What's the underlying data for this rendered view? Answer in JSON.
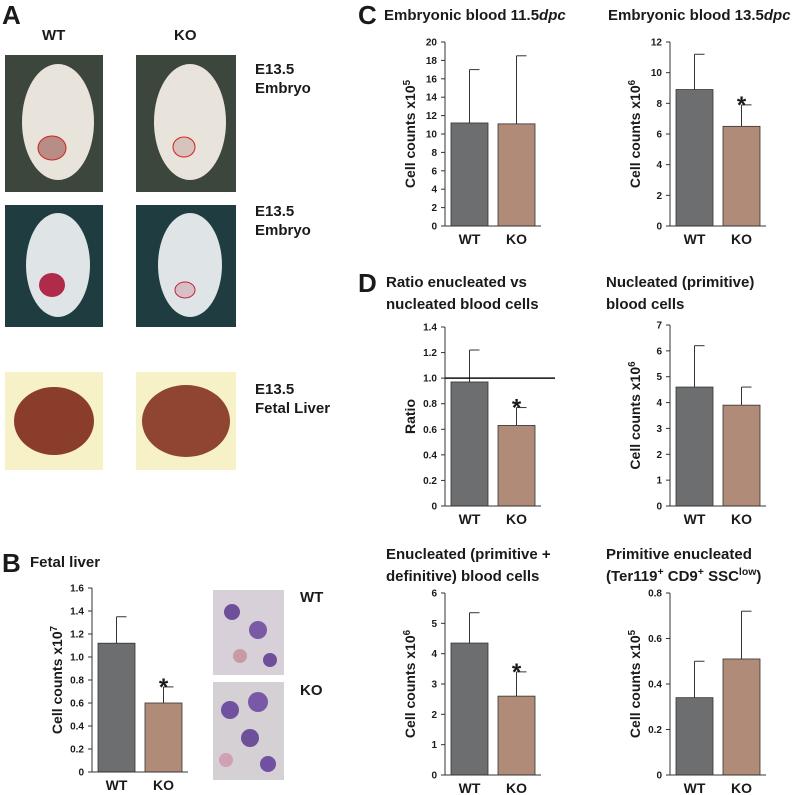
{
  "figure": {
    "panels": [
      "A",
      "B",
      "C",
      "D"
    ],
    "photo_columns": [
      "WT",
      "KO"
    ],
    "photo_rows": [
      [
        "E13.5",
        "Embryo"
      ],
      [
        "E13.5",
        "Embryo"
      ],
      [
        "E13.5",
        "Fetal Liver"
      ]
    ],
    "micrograph_labels": [
      "WT",
      "KO"
    ]
  },
  "chart_data": [
    {
      "type": "bar",
      "title_lines": [
        [
          {
            "text": "Fetal liver"
          }
        ]
      ],
      "ylabel": [
        {
          "text": "Cell counts x10"
        },
        {
          "text": "7",
          "sup": true
        }
      ],
      "categories": [
        "WT",
        "KO"
      ],
      "values": [
        1.12,
        0.6
      ],
      "errors": [
        0.23,
        0.14
      ],
      "colors": [
        "#6d6e70",
        "#b08b78"
      ],
      "ylim": [
        0,
        1.6
      ],
      "yticks": [
        0,
        0.2,
        0.4,
        0.6,
        0.8,
        {
          "value": 1,
          "label": "1.0"
        },
        1.2,
        1.4,
        1.6
      ],
      "annotation": "*"
    },
    {
      "type": "bar",
      "title_lines": [
        [
          {
            "text": "Embryonic blood 11.5"
          },
          {
            "text": "dpc",
            "italic": true
          }
        ]
      ],
      "ylabel": [
        {
          "text": "Cell counts x10"
        },
        {
          "text": "5",
          "sup": true
        }
      ],
      "categories": [
        "WT",
        "KO"
      ],
      "values": [
        11.2,
        11.1
      ],
      "errors": [
        5.8,
        7.4
      ],
      "colors": [
        "#6d6e70",
        "#b08b78"
      ],
      "ylim": [
        0,
        20
      ],
      "yticks": [
        0,
        2,
        4,
        6,
        8,
        10,
        12,
        14,
        16,
        18,
        20
      ]
    },
    {
      "type": "bar",
      "title_lines": [
        [
          {
            "text": "Embryonic blood 13.5"
          },
          {
            "text": "dpc",
            "italic": true
          }
        ]
      ],
      "ylabel": [
        {
          "text": "Cell counts x10"
        },
        {
          "text": "6",
          "sup": true
        }
      ],
      "categories": [
        "WT",
        "KO"
      ],
      "values": [
        8.9,
        6.5
      ],
      "errors": [
        2.3,
        1.4
      ],
      "colors": [
        "#6d6e70",
        "#b08b78"
      ],
      "ylim": [
        0,
        12
      ],
      "yticks": [
        0,
        2,
        4,
        6,
        8,
        10,
        12
      ],
      "annotation": "*"
    },
    {
      "type": "bar",
      "title_lines": [
        [
          {
            "text": "Ratio enucleated vs"
          }
        ],
        [
          {
            "text": "nucleated blood cells"
          }
        ]
      ],
      "ylabel": [
        {
          "text": "Ratio"
        }
      ],
      "categories": [
        "WT",
        "KO"
      ],
      "values": [
        0.97,
        0.63
      ],
      "errors": [
        0.25,
        0.14
      ],
      "colors": [
        "#6d6e70",
        "#b08b78"
      ],
      "ylim": [
        0,
        1.4
      ],
      "yticks": [
        0,
        0.2,
        0.4,
        0.6,
        0.8,
        {
          "value": 1,
          "label": "1.0"
        },
        1.2,
        1.4
      ],
      "reference_line": 1,
      "annotation": "*"
    },
    {
      "type": "bar",
      "title_lines": [
        [
          {
            "text": "Nucleated (primitive)"
          }
        ],
        [
          {
            "text": "blood cells"
          }
        ]
      ],
      "ylabel": [
        {
          "text": "Cell counts x10"
        },
        {
          "text": "6",
          "sup": true
        }
      ],
      "categories": [
        "WT",
        "KO"
      ],
      "values": [
        4.6,
        3.9
      ],
      "errors": [
        1.6,
        0.7
      ],
      "colors": [
        "#6d6e70",
        "#b08b78"
      ],
      "ylim": [
        0,
        7
      ],
      "yticks": [
        0,
        1,
        2,
        3,
        4,
        5,
        6,
        7
      ]
    },
    {
      "type": "bar",
      "title_lines": [
        [
          {
            "text": "Enucleated (primitive +"
          }
        ],
        [
          {
            "text": "definitive) blood cells"
          }
        ]
      ],
      "ylabel": [
        {
          "text": "Cell counts x10"
        },
        {
          "text": "6",
          "sup": true
        }
      ],
      "categories": [
        "WT",
        "KO"
      ],
      "values": [
        4.35,
        2.6
      ],
      "errors": [
        1.0,
        0.8
      ],
      "colors": [
        "#6d6e70",
        "#b08b78"
      ],
      "ylim": [
        0,
        6
      ],
      "yticks": [
        0,
        1,
        2,
        3,
        4,
        5,
        6
      ],
      "annotation": "*"
    },
    {
      "type": "bar",
      "title_lines": [
        [
          {
            "text": "Primitive enucleated"
          }
        ],
        [
          {
            "text": "(Ter119"
          },
          {
            "text": "+",
            "sup": true
          },
          {
            "text": " CD9"
          },
          {
            "text": "+",
            "sup": true
          },
          {
            "text": " SSC"
          },
          {
            "text": "low",
            "sup": true
          },
          {
            "text": ")"
          }
        ]
      ],
      "ylabel": [
        {
          "text": "Cell counts x10"
        },
        {
          "text": "5",
          "sup": true
        }
      ],
      "categories": [
        "WT",
        "KO"
      ],
      "values": [
        0.34,
        0.51
      ],
      "errors": [
        0.16,
        0.21
      ],
      "colors": [
        "#6d6e70",
        "#b08b78"
      ],
      "ylim": [
        0,
        0.8
      ],
      "yticks": [
        0,
        0.2,
        0.4,
        0.6,
        0.8
      ]
    }
  ]
}
